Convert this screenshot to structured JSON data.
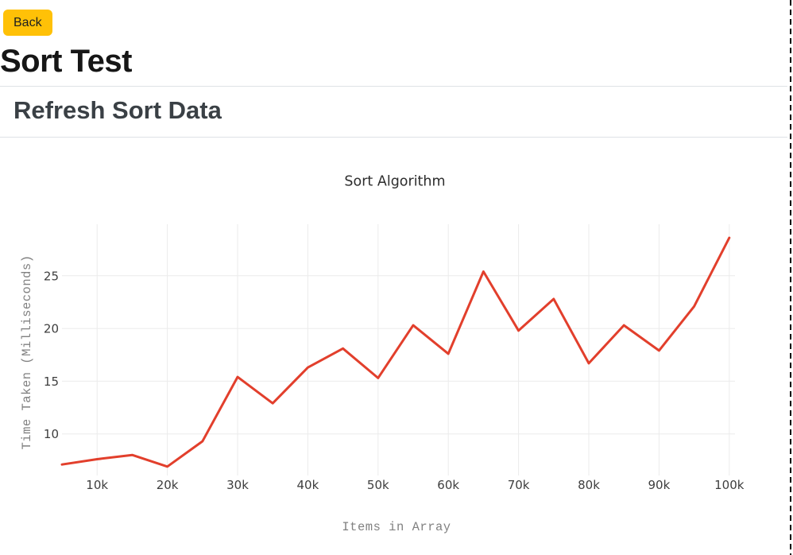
{
  "page": {
    "back_button_label": "Back",
    "title": "Sort Test",
    "section_header": "Refresh Sort Data"
  },
  "colors": {
    "back_button_bg": "#ffc107",
    "back_button_text": "#1b1e21",
    "heading_text": "#161616",
    "section_header_text": "#3a4045",
    "divider": "#dee2e6",
    "chart_line": "#e23f2c",
    "chart_grid": "#ebebeb",
    "chart_tick_text": "#3e3e3e",
    "chart_axis_title_text": "#818181",
    "right_dashed_border": "#000000"
  },
  "chart_data": {
    "type": "line",
    "title": "Sort Algorithm",
    "xlabel": "Items in Array",
    "ylabel": "Time Taken (Milliseconds)",
    "x": [
      5000,
      10000,
      15000,
      20000,
      25000,
      30000,
      35000,
      40000,
      45000,
      50000,
      55000,
      60000,
      65000,
      70000,
      75000,
      80000,
      85000,
      90000,
      95000,
      100000
    ],
    "series": [
      {
        "name": "Sort Algorithm",
        "color": "#e23f2c",
        "values": [
          7.1,
          7.6,
          8.0,
          6.9,
          9.3,
          15.4,
          12.9,
          16.3,
          18.1,
          15.3,
          20.3,
          17.6,
          25.4,
          19.8,
          22.8,
          16.7,
          20.3,
          17.9,
          22.1,
          28.6
        ]
      }
    ],
    "x_tick_values": [
      10000,
      20000,
      30000,
      40000,
      50000,
      60000,
      70000,
      80000,
      90000,
      100000
    ],
    "x_tick_labels": [
      "10k",
      "20k",
      "30k",
      "40k",
      "50k",
      "60k",
      "70k",
      "80k",
      "90k",
      "100k"
    ],
    "y_ticks": [
      10,
      15,
      20,
      25
    ],
    "xlim": [
      5000,
      100800
    ],
    "ylim": [
      6.1,
      29.9
    ],
    "grid": true,
    "legend": false,
    "style": {
      "grid_color": "#ebebeb",
      "line_width": 3
    }
  }
}
